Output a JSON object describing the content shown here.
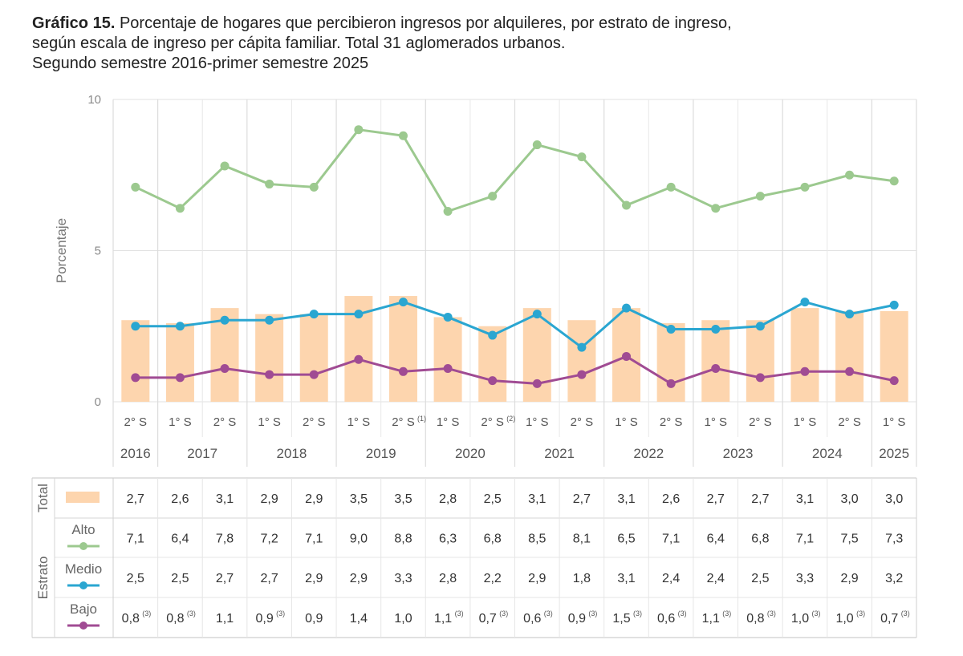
{
  "title": {
    "lead": "Gráfico 15.",
    "line1": " Porcentaje de hogares que percibieron ingresos por alquileres, por estrato de ingreso,",
    "line2": "según escala de ingreso per cápita familiar. Total 31 aglomerados urbanos.",
    "line3": "Segundo semestre 2016-primer semestre 2025"
  },
  "chart_data": {
    "type": "bar+line",
    "ylabel": "Porcentaje",
    "ylim": [
      0,
      10
    ],
    "yticks": [
      "0",
      "5",
      "10"
    ],
    "grid": true,
    "semesters": [
      "2° S",
      "1° S",
      "2° S",
      "1° S",
      "2° S",
      "1° S",
      "2° S",
      "1° S",
      "2° S",
      "1° S",
      "2° S",
      "1° S",
      "2° S",
      "1° S",
      "2° S",
      "1° S",
      "2° S",
      "1° S"
    ],
    "semester_notes": [
      "",
      "",
      "",
      "",
      "",
      "",
      "(1)",
      "",
      "(2)",
      "",
      "",
      "",
      "",
      "",
      "",
      "",
      "",
      ""
    ],
    "years": [
      {
        "label": "2016",
        "start": 0,
        "end": 0
      },
      {
        "label": "2017",
        "start": 1,
        "end": 2
      },
      {
        "label": "2018",
        "start": 3,
        "end": 4
      },
      {
        "label": "2019",
        "start": 5,
        "end": 6
      },
      {
        "label": "2020",
        "start": 7,
        "end": 8
      },
      {
        "label": "2021",
        "start": 9,
        "end": 10
      },
      {
        "label": "2022",
        "start": 11,
        "end": 12
      },
      {
        "label": "2023",
        "start": 13,
        "end": 14
      },
      {
        "label": "2024",
        "start": 15,
        "end": 16
      },
      {
        "label": "2025",
        "start": 17,
        "end": 17
      }
    ],
    "series": [
      {
        "name": "Total",
        "kind": "bar",
        "color": "#fdd5ae",
        "values": [
          2.7,
          2.6,
          3.1,
          2.9,
          2.9,
          3.5,
          3.5,
          2.8,
          2.5,
          3.1,
          2.7,
          3.1,
          2.6,
          2.7,
          2.7,
          3.1,
          3.0,
          3.0
        ],
        "labels": [
          "2,7",
          "2,6",
          "3,1",
          "2,9",
          "2,9",
          "3,5",
          "3,5",
          "2,8",
          "2,5",
          "3,1",
          "2,7",
          "3,1",
          "2,6",
          "2,7",
          "2,7",
          "3,1",
          "3,0",
          "3,0"
        ],
        "notes": [
          "",
          "",
          "",
          "",
          "",
          "",
          "",
          "",
          "",
          "",
          "",
          "",
          "",
          "",
          "",
          "",
          "",
          ""
        ]
      },
      {
        "name": "Alto",
        "kind": "line",
        "color": "#9cc98f",
        "values": [
          7.1,
          6.4,
          7.8,
          7.2,
          7.1,
          9.0,
          8.8,
          6.3,
          6.8,
          8.5,
          8.1,
          6.5,
          7.1,
          6.4,
          6.8,
          7.1,
          7.5,
          7.3
        ],
        "labels": [
          "7,1",
          "6,4",
          "7,8",
          "7,2",
          "7,1",
          "9,0",
          "8,8",
          "6,3",
          "6,8",
          "8,5",
          "8,1",
          "6,5",
          "7,1",
          "6,4",
          "6,8",
          "7,1",
          "7,5",
          "7,3"
        ],
        "notes": [
          "",
          "",
          "",
          "",
          "",
          "",
          "",
          "",
          "",
          "",
          "",
          "",
          "",
          "",
          "",
          "",
          "",
          ""
        ]
      },
      {
        "name": "Medio",
        "kind": "line",
        "color": "#2aa6d1",
        "values": [
          2.5,
          2.5,
          2.7,
          2.7,
          2.9,
          2.9,
          3.3,
          2.8,
          2.2,
          2.9,
          1.8,
          3.1,
          2.4,
          2.4,
          2.5,
          3.3,
          2.9,
          3.2
        ],
        "labels": [
          "2,5",
          "2,5",
          "2,7",
          "2,7",
          "2,9",
          "2,9",
          "3,3",
          "2,8",
          "2,2",
          "2,9",
          "1,8",
          "3,1",
          "2,4",
          "2,4",
          "2,5",
          "3,3",
          "2,9",
          "3,2"
        ],
        "notes": [
          "",
          "",
          "",
          "",
          "",
          "",
          "",
          "",
          "",
          "",
          "",
          "",
          "",
          "",
          "",
          "",
          "",
          ""
        ]
      },
      {
        "name": "Bajo",
        "kind": "line",
        "color": "#a04b93",
        "values": [
          0.8,
          0.8,
          1.1,
          0.9,
          0.9,
          1.4,
          1.0,
          1.1,
          0.7,
          0.6,
          0.9,
          1.5,
          0.6,
          1.1,
          0.8,
          1.0,
          1.0,
          0.7
        ],
        "labels": [
          "0,8",
          "0,8",
          "1,1",
          "0,9",
          "0,9",
          "1,4",
          "1,0",
          "1,1",
          "0,7",
          "0,6",
          "0,9",
          "1,5",
          "0,6",
          "1,1",
          "0,8",
          "1,0",
          "1,0",
          "0,7"
        ],
        "notes": [
          "(3)",
          "(3)",
          "",
          "(3)",
          "",
          "",
          "",
          "(3)",
          "(3)",
          "(3)",
          "(3)",
          "(3)",
          "(3)",
          "(3)",
          "(3)",
          "(3)",
          "(3)",
          "(3)"
        ]
      }
    ],
    "table_group_labels": {
      "total": "Total",
      "estrato": "Estrato"
    }
  }
}
